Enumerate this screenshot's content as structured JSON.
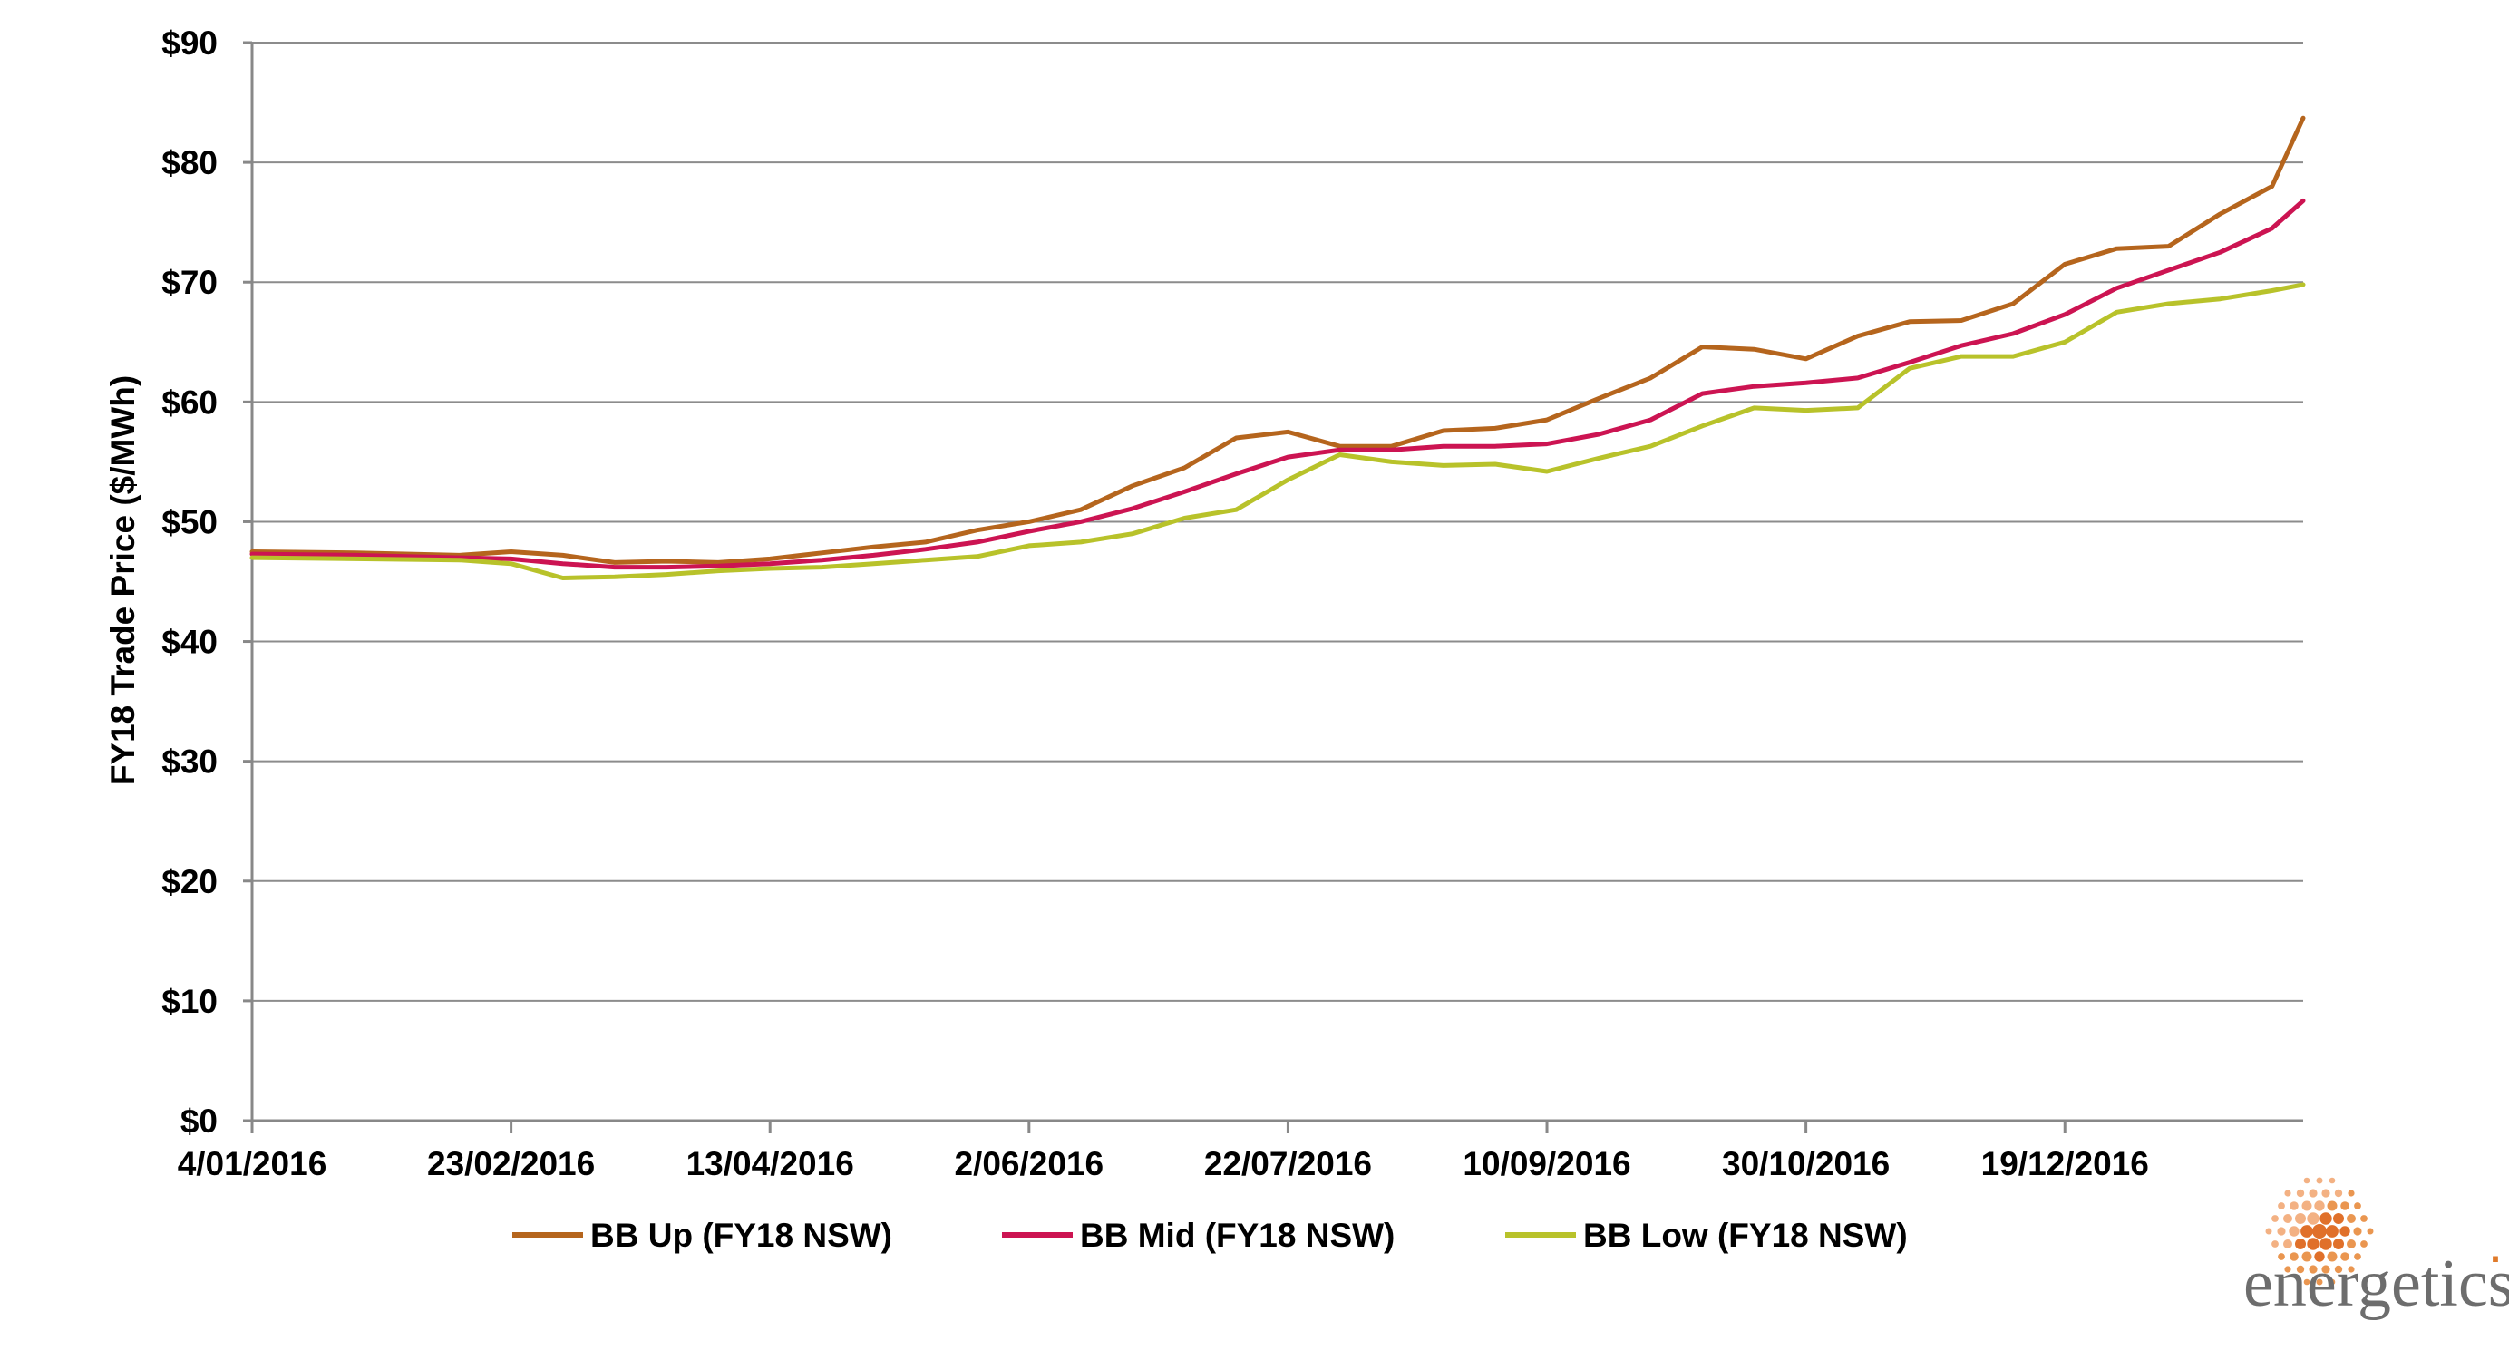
{
  "brand": {
    "name": "energetics",
    "mark": "·"
  },
  "chart_data": {
    "type": "line",
    "title": "",
    "xlabel": "",
    "ylabel": "FY18 Trade Price ($/MWh)",
    "ylim": [
      0,
      90
    ],
    "y_ticks": [
      0,
      10,
      20,
      30,
      40,
      50,
      60,
      70,
      80,
      90
    ],
    "y_tick_labels": [
      "$0",
      "$10",
      "$20",
      "$30",
      "$40",
      "$50",
      "$60",
      "$70",
      "$80",
      "$90"
    ],
    "x_range": [
      "2016-01-04",
      "2017-02-03"
    ],
    "x_tick_dates": [
      "2016-01-04",
      "2016-02-23",
      "2016-04-13",
      "2016-06-02",
      "2016-07-22",
      "2016-09-10",
      "2016-10-30",
      "2016-12-19"
    ],
    "x_tick_labels": [
      "4/01/2016",
      "23/02/2016",
      "13/04/2016",
      "2/06/2016",
      "22/07/2016",
      "10/09/2016",
      "30/10/2016",
      "19/12/2016"
    ],
    "grid": true,
    "legend": "bottom",
    "x": [
      "2016-01-04",
      "2016-01-24",
      "2016-02-13",
      "2016-02-23",
      "2016-03-04",
      "2016-03-14",
      "2016-03-24",
      "2016-04-03",
      "2016-04-13",
      "2016-04-23",
      "2016-05-03",
      "2016-05-13",
      "2016-05-23",
      "2016-06-02",
      "2016-06-12",
      "2016-06-22",
      "2016-07-02",
      "2016-07-12",
      "2016-07-22",
      "2016-08-01",
      "2016-08-11",
      "2016-08-21",
      "2016-08-31",
      "2016-09-10",
      "2016-09-20",
      "2016-09-30",
      "2016-10-10",
      "2016-10-20",
      "2016-10-30",
      "2016-11-09",
      "2016-11-19",
      "2016-11-29",
      "2016-12-09",
      "2016-12-19",
      "2016-12-29",
      "2017-01-08",
      "2017-01-18",
      "2017-01-28",
      "2017-02-03"
    ],
    "series": [
      {
        "name": "BB Up (FY18 NSW)",
        "color": "#b5651d",
        "values": [
          47.5,
          47.4,
          47.2,
          47.5,
          47.2,
          46.6,
          46.7,
          46.6,
          46.9,
          47.4,
          47.9,
          48.3,
          49.3,
          50.0,
          51.0,
          53.0,
          54.5,
          57.0,
          57.5,
          56.3,
          56.3,
          57.6,
          57.8,
          58.5,
          60.3,
          62.0,
          64.6,
          64.4,
          63.6,
          65.5,
          66.7,
          66.8,
          68.2,
          71.5,
          72.8,
          73.0,
          75.7,
          78.0,
          83.7
        ]
      },
      {
        "name": "BB Mid (FY18 NSW)",
        "color": "#cc1452",
        "values": [
          47.3,
          47.2,
          47.0,
          46.9,
          46.5,
          46.2,
          46.2,
          46.3,
          46.5,
          46.8,
          47.2,
          47.7,
          48.3,
          49.2,
          50.0,
          51.1,
          52.5,
          54.0,
          55.4,
          56.0,
          56.0,
          56.3,
          56.3,
          56.5,
          57.3,
          58.5,
          60.7,
          61.3,
          61.6,
          62.0,
          63.3,
          64.7,
          65.7,
          67.3,
          69.5,
          71.0,
          72.5,
          74.5,
          76.8
        ]
      },
      {
        "name": "BB Low (FY18 NSW)",
        "color": "#b8c22a",
        "values": [
          47.0,
          46.9,
          46.8,
          46.5,
          45.3,
          45.4,
          45.6,
          45.9,
          46.1,
          46.2,
          46.5,
          46.8,
          47.1,
          48.0,
          48.3,
          49.0,
          50.3,
          51.0,
          53.5,
          55.6,
          55.0,
          54.7,
          54.8,
          54.2,
          55.3,
          56.3,
          58.0,
          59.5,
          59.3,
          59.5,
          62.8,
          63.8,
          63.8,
          65.0,
          67.5,
          68.2,
          68.6,
          69.3,
          69.8
        ]
      }
    ]
  }
}
